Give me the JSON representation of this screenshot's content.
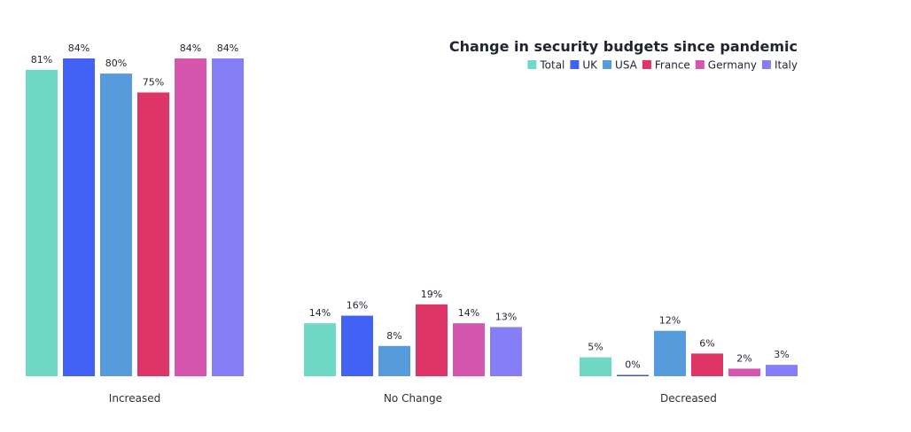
{
  "chart_data": {
    "type": "bar",
    "title": "Change in security budgets since pandemic",
    "xlabel": "",
    "ylabel": "",
    "ylim": [
      0,
      84
    ],
    "grid": false,
    "legend_position": "top-right",
    "categories": [
      "Increased",
      "No Change",
      "Decreased"
    ],
    "series": [
      {
        "name": "Total",
        "color": "#6fd9c5",
        "values": [
          81,
          14,
          5
        ],
        "labels": [
          "81%",
          "14%",
          "5%"
        ]
      },
      {
        "name": "UK",
        "color": "#4262f5",
        "values": [
          84,
          16,
          0
        ],
        "labels": [
          "84%",
          "16%",
          "0%"
        ]
      },
      {
        "name": "USA",
        "color": "#569bdc",
        "values": [
          80,
          8,
          12
        ],
        "labels": [
          "80%",
          "8%",
          "12%"
        ]
      },
      {
        "name": "France",
        "color": "#dd3568",
        "values": [
          75,
          19,
          6
        ],
        "labels": [
          "75%",
          "19%",
          "6%"
        ]
      },
      {
        "name": "Germany",
        "color": "#d655ad",
        "values": [
          84,
          14,
          2
        ],
        "labels": [
          "84%",
          "14%",
          "2%"
        ]
      },
      {
        "name": "Italy",
        "color": "#857ef7",
        "values": [
          84,
          13,
          3
        ],
        "labels": [
          "84%",
          "13%",
          "3%"
        ]
      }
    ]
  }
}
